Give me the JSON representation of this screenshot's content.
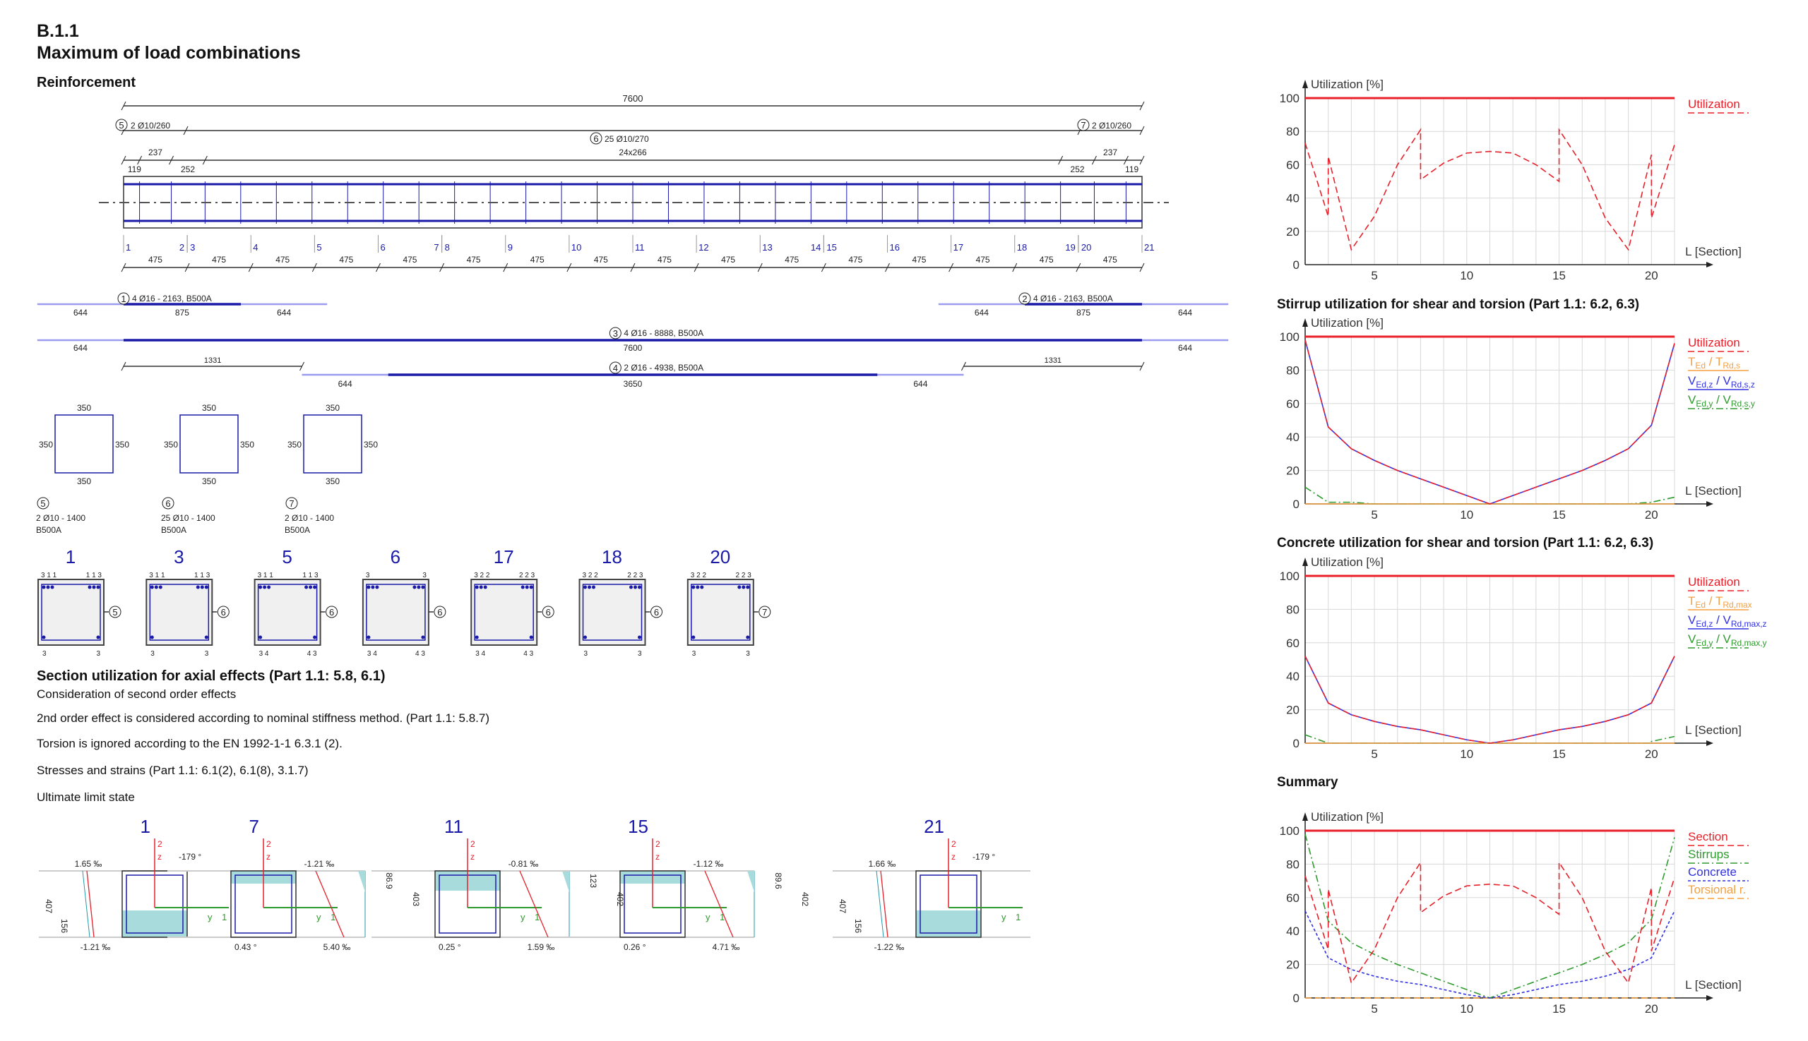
{
  "header": {
    "code": "B.1.1",
    "title": "Maximum of load combinations"
  },
  "reinforcement": {
    "heading": "Reinforcement",
    "total_length": "7600",
    "stirrup_groups": [
      {
        "mark": "5",
        "label": "2 Ø10/260"
      },
      {
        "mark": "6",
        "label": "25 Ø10/270"
      },
      {
        "mark": "7",
        "label": "2 Ø10/260"
      }
    ],
    "spacing_top": {
      "left": "237",
      "middle": "24x266",
      "right": "237"
    },
    "spacing_bottom": {
      "l1": "119",
      "l2": "252",
      "r2": "252",
      "r1": "119"
    },
    "sections": [
      "1",
      "2",
      "3",
      "4",
      "5",
      "6",
      "7",
      "8",
      "9",
      "10",
      "11",
      "12",
      "13",
      "14",
      "15",
      "16",
      "17",
      "18",
      "19",
      "20",
      "21"
    ],
    "segment_lengths": [
      "475",
      "475",
      "475",
      "475",
      "475",
      "475",
      "475",
      "475",
      "475",
      "475",
      "475",
      "475",
      "475",
      "475",
      "475",
      "475"
    ],
    "bars": [
      {
        "mark": "1",
        "label": "4 Ø16 - 2163, B500A",
        "dims": [
          "644",
          "875",
          "644"
        ]
      },
      {
        "mark": "2",
        "label": "4 Ø16 - 2163, B500A",
        "dims": [
          "644",
          "875",
          "644"
        ]
      },
      {
        "mark": "3",
        "label": "4 Ø16 - 8888, B500A",
        "dims": [
          "644",
          "7600",
          "644"
        ]
      },
      {
        "mark": "4",
        "label": "2 Ø16 - 4938, B500A",
        "dims": [
          "644",
          "3650",
          "644"
        ],
        "offsets": [
          "1331",
          "1331"
        ]
      }
    ],
    "stirrup_shapes": [
      {
        "mark": "5",
        "dims": [
          "350",
          "350",
          "350",
          "350"
        ],
        "line1": "2 Ø10 - 1400",
        "line2": "B500A"
      },
      {
        "mark": "6",
        "dims": [
          "350",
          "350",
          "350",
          "350"
        ],
        "line1": "25 Ø10 - 1400",
        "line2": "B500A"
      },
      {
        "mark": "7",
        "dims": [
          "350",
          "350",
          "350",
          "350"
        ],
        "line1": "2 Ø10 - 1400",
        "line2": "B500A"
      }
    ],
    "cross_sections": [
      {
        "number": "1",
        "top_left": "3 1 1",
        "top_right": "1 1 3",
        "bot_left": "3",
        "bot_right": "3",
        "mark": "5"
      },
      {
        "number": "3",
        "top_left": "3 1 1",
        "top_right": "1 1 3",
        "bot_left": "3",
        "bot_right": "3",
        "mark": "6"
      },
      {
        "number": "5",
        "top_left": "3 1 1",
        "top_right": "1 1 3",
        "bot_left": "3 4",
        "bot_right": "4 3",
        "mark": "6"
      },
      {
        "number": "6",
        "top_left": "3",
        "top_right": "3",
        "bot_left": "3 4",
        "bot_right": "4 3",
        "mark": "6"
      },
      {
        "number": "17",
        "top_left": "3 2 2",
        "top_right": "2 2 3",
        "bot_left": "3 4",
        "bot_right": "4 3",
        "mark": "6"
      },
      {
        "number": "18",
        "top_left": "3 2 2",
        "top_right": "2 2 3",
        "bot_left": "3",
        "bot_right": "3",
        "mark": "6"
      },
      {
        "number": "20",
        "top_left": "3 2 2",
        "top_right": "2 2 3",
        "bot_left": "3",
        "bot_right": "3",
        "mark": "7"
      }
    ]
  },
  "axial": {
    "heading": "Section utilization for axial effects (Part 1.1: 5.8, 6.1)",
    "lines": [
      "Consideration of second order effects",
      "2nd order effect is considered according to nominal stiffness method. (Part 1.1: 5.8.7)",
      "Torsion is ignored according to the EN 1992-1-1 6.3.1 (2).",
      "Stresses and strains (Part 1.1: 6.1(2), 6.1(8), 3.1.7)",
      "Ultimate limit state"
    ],
    "axis_labels": {
      "z_num": "2",
      "z": "z",
      "y": "y",
      "y_num": "1"
    },
    "strain_diagrams": [
      {
        "number": "1",
        "top_strain": "1.65 ‰",
        "bottom_strain": "-1.21 ‰",
        "angle": "-179 °",
        "dim_a": "407",
        "dim_b": "156",
        "flipped": true
      },
      {
        "number": "7",
        "top_strain": "-1.21 ‰",
        "bottom_strain": "5.40 ‰",
        "angle": "0.43 °",
        "dim_a": "86.9",
        "dim_b": "403",
        "flipped": false
      },
      {
        "number": "11",
        "top_strain": "-0.81 ‰",
        "bottom_strain": "1.59 ‰",
        "angle": "0.25 °",
        "dim_a": "123",
        "dim_b": "402",
        "flipped": false
      },
      {
        "number": "15",
        "top_strain": "-1.12 ‰",
        "bottom_strain": "4.71 ‰",
        "angle": "0.26 °",
        "dim_a": "89.6",
        "dim_b": "402",
        "flipped": false
      },
      {
        "number": "21",
        "top_strain": "1.66 ‰",
        "bottom_strain": "-1.22 ‰",
        "angle": "-179 °",
        "dim_a": "407",
        "dim_b": "156",
        "flipped": true
      }
    ]
  },
  "colors": {
    "blue": "#1a1aa8",
    "light_blue": "#9b9bf0",
    "red": "#e8202a",
    "green": "#2e9a2e",
    "series_blue": "#3030e0",
    "orange": "#f5a040",
    "teal": "#a8dcdc",
    "grid": "#d8d8d8"
  },
  "chart_data": [
    {
      "type": "line",
      "title": "",
      "ylabel": "Utilization [%]",
      "xlabel": "L [Section]",
      "ylim": [
        0,
        100
      ],
      "yticks": [
        "0",
        "20",
        "40",
        "60",
        "80",
        "100"
      ],
      "xticks": [
        "5",
        "10",
        "15",
        "20"
      ],
      "grid": true,
      "legend": "right",
      "limit": 100,
      "x": [
        1,
        2,
        3,
        4,
        5,
        6,
        7,
        8,
        9,
        10,
        11,
        12,
        13,
        14,
        15,
        16,
        17,
        18,
        19,
        20,
        21
      ],
      "series": [
        {
          "name": [
            "Utilization"
          ],
          "color": "#e8202a",
          "dash": "dash",
          "values": [
            73,
            29,
            65,
            9,
            29,
            60,
            81,
            51,
            61,
            67,
            68,
            67,
            60,
            50,
            81,
            60,
            28,
            9,
            66,
            28,
            72
          ]
        }
      ]
    },
    {
      "type": "line",
      "title": "Stirrup utilization for shear and torsion (Part 1.1: 6.2, 6.3)",
      "ylabel": "Utilization [%]",
      "xlabel": "L [Section]",
      "ylim": [
        0,
        100
      ],
      "yticks": [
        "0",
        "20",
        "40",
        "60",
        "80",
        "100"
      ],
      "xticks": [
        "5",
        "10",
        "15",
        "20"
      ],
      "grid": true,
      "legend": "right",
      "limit": 100,
      "x": [
        1,
        2,
        3,
        4,
        5,
        6,
        7,
        8,
        9,
        10,
        11,
        12,
        13,
        14,
        15,
        16,
        17,
        18,
        19,
        20,
        21
      ],
      "series": [
        {
          "name": [
            "V",
            "Ed,y",
            " / V",
            "Rd,s,y"
          ],
          "color": "#2e9a2e",
          "dash": "dashdot",
          "values": [
            10,
            1,
            1,
            1,
            0,
            0,
            0,
            0,
            0,
            0,
            0,
            0,
            0,
            0,
            0,
            0,
            0,
            0,
            1,
            1,
            4
          ]
        },
        {
          "name": [
            "V",
            "Ed,z",
            " / V",
            "Rd,s,z"
          ],
          "color": "#3030e0",
          "dash": "solid",
          "values": [
            98,
            46,
            46,
            33,
            26,
            20,
            15,
            15,
            10,
            5,
            0,
            5,
            10,
            15,
            15,
            20,
            26,
            33,
            47,
            47,
            96
          ]
        },
        {
          "name": [
            "T",
            "Ed",
            " / T",
            "Rd,s"
          ],
          "color": "#f5a040",
          "dash": "solid",
          "values": [
            0,
            0,
            0,
            0,
            0,
            0,
            0,
            0,
            0,
            0,
            0,
            0,
            0,
            0,
            0,
            0,
            0,
            0,
            0,
            0,
            0
          ]
        },
        {
          "name": [
            "Utilization"
          ],
          "color": "#e8202a",
          "dash": "dash",
          "values": [
            98,
            46,
            46,
            33,
            26,
            20,
            15,
            15,
            10,
            5,
            0,
            5,
            10,
            15,
            15,
            20,
            26,
            33,
            47,
            47,
            96
          ]
        }
      ]
    },
    {
      "type": "line",
      "title": "Concrete utilization for shear and torsion (Part 1.1: 6.2, 6.3)",
      "ylabel": "Utilization [%]",
      "xlabel": "L [Section]",
      "ylim": [
        0,
        100
      ],
      "yticks": [
        "0",
        "20",
        "40",
        "60",
        "80",
        "100"
      ],
      "xticks": [
        "5",
        "10",
        "15",
        "20"
      ],
      "grid": true,
      "legend": "right",
      "limit": 100,
      "x": [
        1,
        2,
        3,
        4,
        5,
        6,
        7,
        8,
        9,
        10,
        11,
        12,
        13,
        14,
        15,
        16,
        17,
        18,
        19,
        20,
        21
      ],
      "series": [
        {
          "name": [
            "V",
            "Ed,y",
            " / V",
            "Rd,max,y"
          ],
          "color": "#2e9a2e",
          "dash": "dashdot",
          "values": [
            5,
            0,
            0,
            0,
            0,
            0,
            0,
            0,
            0,
            0,
            0,
            0,
            0,
            0,
            0,
            0,
            0,
            0,
            0,
            1,
            4
          ]
        },
        {
          "name": [
            "V",
            "Ed,z",
            " / V",
            "Rd,max,z"
          ],
          "color": "#3030e0",
          "dash": "solid",
          "values": [
            52,
            24,
            24,
            17,
            13,
            10,
            8,
            8,
            5,
            2,
            0,
            2,
            5,
            8,
            8,
            10,
            13,
            17,
            24,
            24,
            52
          ]
        },
        {
          "name": [
            "T",
            "Ed",
            " / T",
            "Rd,max"
          ],
          "color": "#f5a040",
          "dash": "solid",
          "values": [
            0,
            0,
            0,
            0,
            0,
            0,
            0,
            0,
            0,
            0,
            0,
            0,
            0,
            0,
            0,
            0,
            0,
            0,
            0,
            0,
            0
          ]
        },
        {
          "name": [
            "Utilization"
          ],
          "color": "#e8202a",
          "dash": "dash",
          "values": [
            52,
            24,
            24,
            17,
            13,
            10,
            8,
            8,
            5,
            2,
            0,
            2,
            5,
            8,
            8,
            10,
            13,
            17,
            24,
            24,
            52
          ]
        }
      ]
    },
    {
      "type": "line",
      "title": "Summary",
      "ylabel": "Utilization [%]",
      "xlabel": "L [Section]",
      "ylim": [
        0,
        100
      ],
      "yticks": [
        "0",
        "20",
        "40",
        "60",
        "80",
        "100"
      ],
      "xticks": [
        "5",
        "10",
        "15",
        "20"
      ],
      "grid": true,
      "legend": "right",
      "limit": 100,
      "x": [
        1,
        2,
        3,
        4,
        5,
        6,
        7,
        8,
        9,
        10,
        11,
        12,
        13,
        14,
        15,
        16,
        17,
        18,
        19,
        20,
        21
      ],
      "series": [
        {
          "name": [
            "Torsional r."
          ],
          "color": "#f5a040",
          "dash": "dash",
          "values": [
            0,
            0,
            0,
            0,
            0,
            0,
            0,
            0,
            0,
            0,
            0,
            0,
            0,
            0,
            0,
            0,
            0,
            0,
            0,
            0,
            0
          ]
        },
        {
          "name": [
            "Stirrups"
          ],
          "color": "#2e9a2e",
          "dash": "dashdot",
          "values": [
            98,
            46,
            46,
            33,
            26,
            20,
            15,
            15,
            10,
            5,
            0,
            5,
            10,
            15,
            15,
            20,
            26,
            33,
            47,
            47,
            96
          ]
        },
        {
          "name": [
            "Concrete"
          ],
          "color": "#3030e0",
          "dash": "dot",
          "values": [
            52,
            24,
            24,
            17,
            13,
            10,
            8,
            8,
            5,
            2,
            0,
            2,
            5,
            8,
            8,
            10,
            13,
            17,
            24,
            24,
            52
          ]
        },
        {
          "name": [
            "Section"
          ],
          "color": "#e8202a",
          "dash": "dash",
          "values": [
            73,
            29,
            65,
            9,
            29,
            60,
            81,
            51,
            61,
            67,
            68,
            67,
            60,
            50,
            81,
            60,
            28,
            9,
            66,
            28,
            72
          ]
        }
      ],
      "legend_order": [
        3,
        1,
        2,
        0
      ]
    }
  ]
}
